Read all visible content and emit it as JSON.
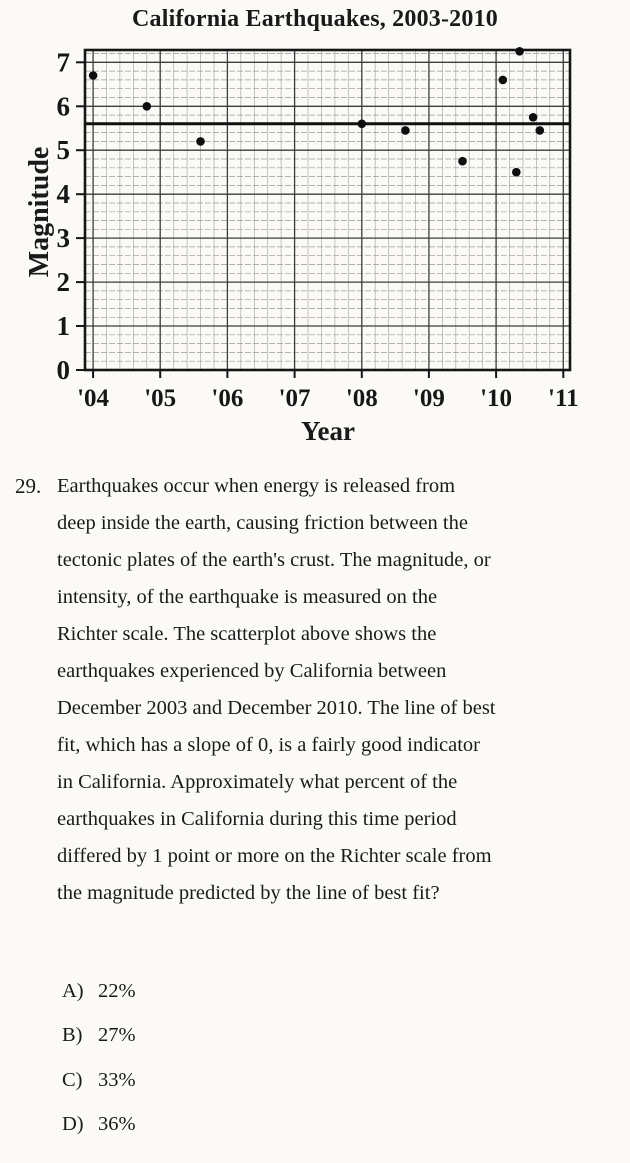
{
  "chart_data": {
    "type": "scatter",
    "title": "California Earthquakes, 2003-2010",
    "xlabel": "Year",
    "ylabel": "Magnitude",
    "xlim": [
      2003.88,
      2011.1
    ],
    "ylim": [
      0,
      7.28
    ],
    "x_ticks": [
      2004,
      2005,
      2006,
      2007,
      2008,
      2009,
      2010,
      2011
    ],
    "x_tick_labels": [
      "'04",
      "'05",
      "'06",
      "'07",
      "'08",
      "'09",
      "'10",
      "'11"
    ],
    "y_ticks": [
      0,
      1,
      2,
      3,
      4,
      5,
      6,
      7
    ],
    "y_tick_labels": [
      "0",
      "1",
      "2",
      "3",
      "4",
      "5",
      "6",
      "7"
    ],
    "grid": {
      "minor_step_x": 0.2,
      "minor_step_y": 0.2,
      "minor_color_x": "#ababab",
      "minor_color_y": "#999999",
      "major_color": "#3d3d3d"
    },
    "points": [
      {
        "year": 2004.0,
        "magnitude": 6.7
      },
      {
        "year": 2004.8,
        "magnitude": 6.0
      },
      {
        "year": 2005.6,
        "magnitude": 5.2
      },
      {
        "year": 2008.0,
        "magnitude": 5.6
      },
      {
        "year": 2008.65,
        "magnitude": 5.45
      },
      {
        "year": 2009.5,
        "magnitude": 4.75
      },
      {
        "year": 2010.1,
        "magnitude": 6.6
      },
      {
        "year": 2010.3,
        "magnitude": 4.5
      },
      {
        "year": 2010.35,
        "magnitude": 7.25
      },
      {
        "year": 2010.55,
        "magnitude": 5.75
      },
      {
        "year": 2010.65,
        "magnitude": 5.45
      }
    ],
    "best_fit_line": {
      "slope": 0,
      "magnitude": 5.6
    },
    "legend": "none"
  },
  "question": {
    "number": "29.",
    "text": "Earthquakes occur when energy is released from deep inside the earth, causing friction between the tectonic plates of the earth's crust. The magnitude, or intensity, of the earthquake is measured on the Richter scale. The scatterplot above shows the earthquakes experienced by California between December 2003 and December 2010. The line of best fit, which has a slope of 0, is a fairly good indicator in California. Approximately what percent of the earthquakes in California during this time period differed by 1 point or more on the Richter scale from the magnitude predicted by the line of best fit?"
  },
  "choices": [
    {
      "letter": "A)",
      "text": "22%"
    },
    {
      "letter": "B)",
      "text": "27%"
    },
    {
      "letter": "C)",
      "text": "33%"
    },
    {
      "letter": "D)",
      "text": "36%"
    }
  ]
}
